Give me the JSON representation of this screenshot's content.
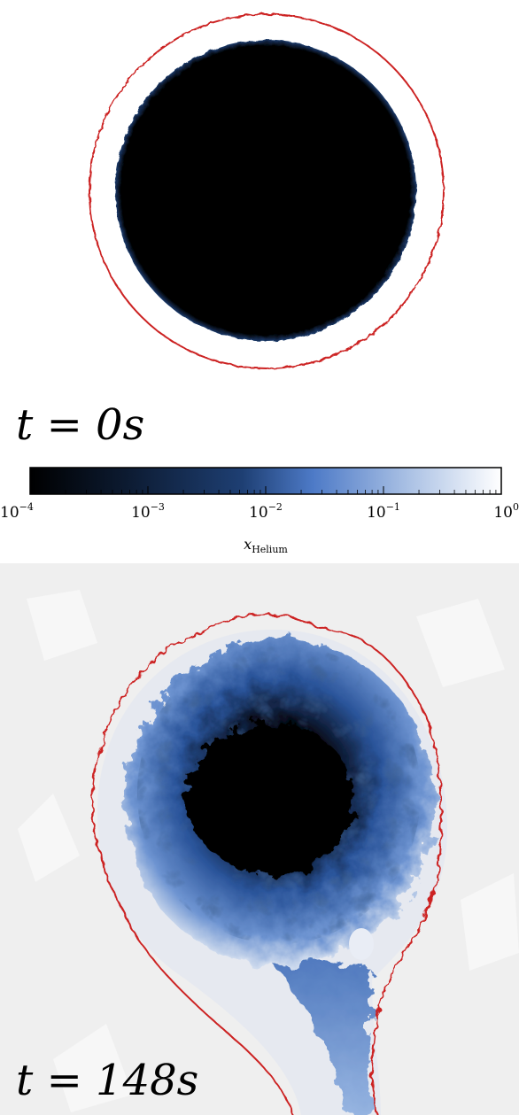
{
  "panels": [
    {
      "time_label": "t = 0s",
      "t": "t",
      "eq": "=",
      "value": "0s"
    },
    {
      "time_label": "t = 148s",
      "t": "t",
      "eq": "=",
      "value": "148s"
    }
  ],
  "colorbar": {
    "label_var": "x",
    "label_sub": "Helium",
    "scale": "log",
    "range": [
      0.0001,
      1
    ],
    "ticks": [
      {
        "base": "10",
        "exp": "−4"
      },
      {
        "base": "10",
        "exp": "−3"
      },
      {
        "base": "10",
        "exp": "−2"
      },
      {
        "base": "10",
        "exp": "−1"
      },
      {
        "base": "10",
        "exp": "0"
      }
    ],
    "colors": [
      "#000000",
      "#0c1a30",
      "#1e3f73",
      "#4d7ac7",
      "#a9c0e4",
      "#ffffff"
    ]
  },
  "colors": {
    "contour": "#cc2222",
    "core": "#000000",
    "turbulent_blue": "#3d6bb8",
    "background_halo": "#eeeeee"
  }
}
